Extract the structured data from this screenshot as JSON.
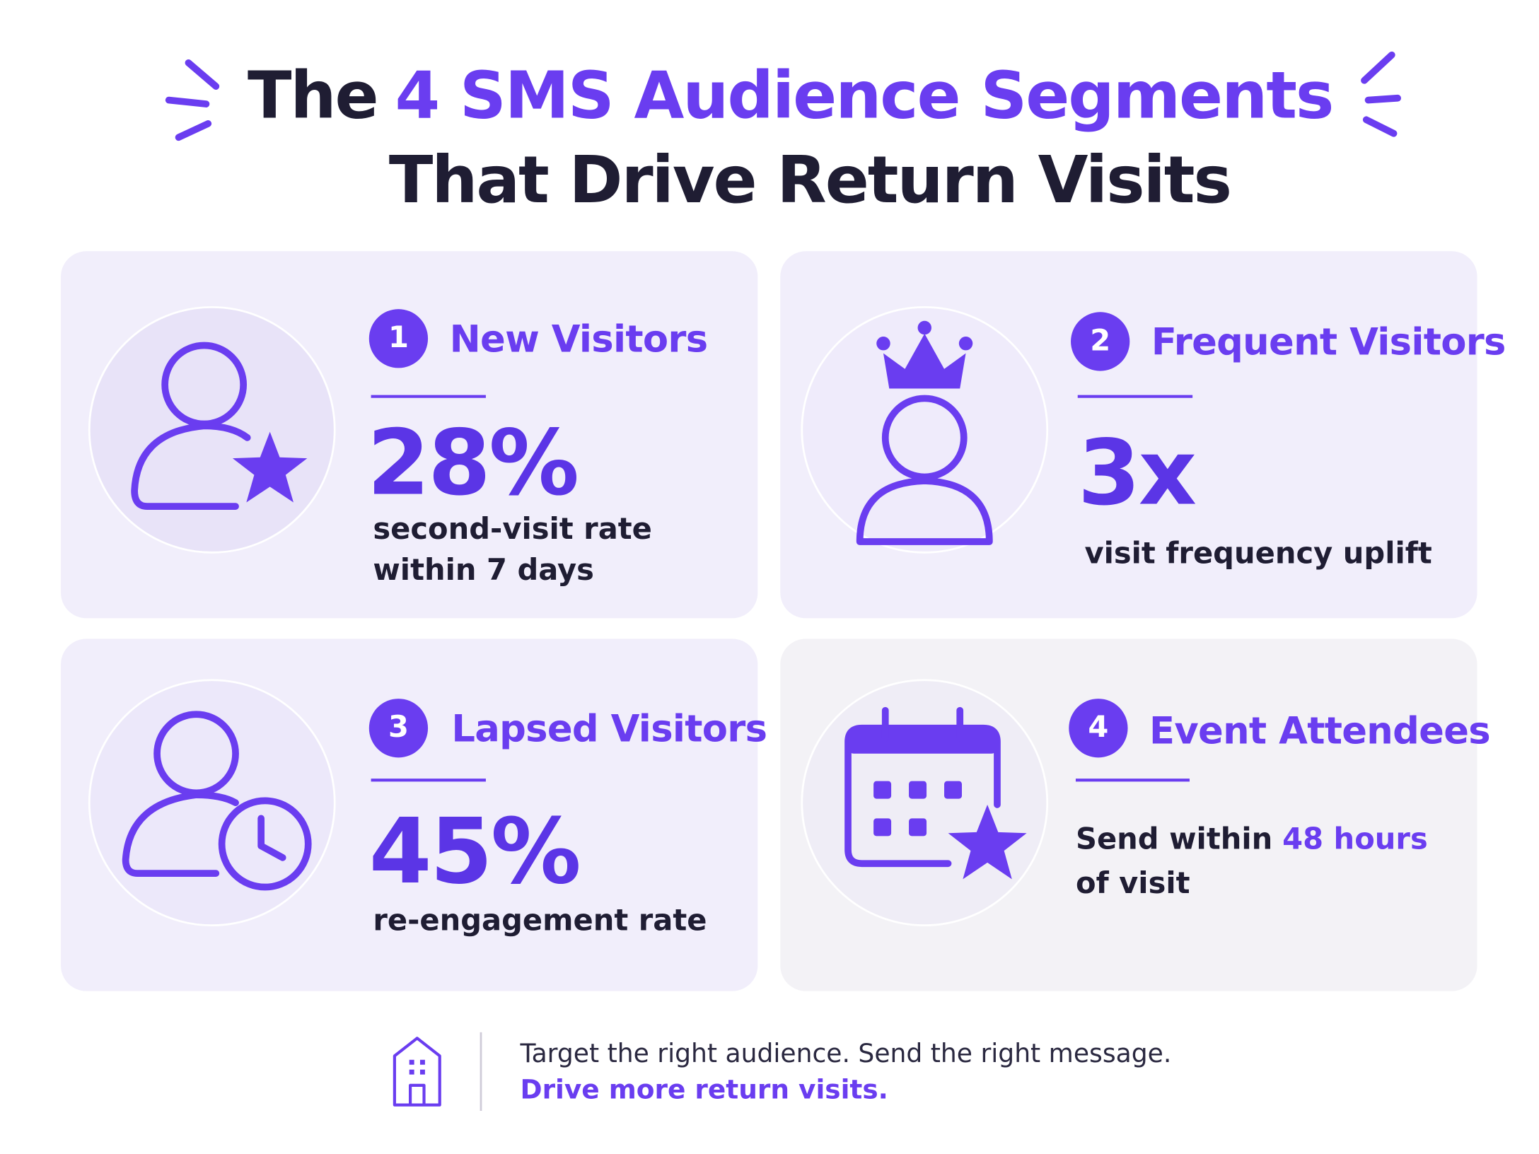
{
  "header": {
    "title_start": "The",
    "title_highlight": "4 SMS Audience Segments",
    "title_line2": "That Drive Return Visits"
  },
  "segments": [
    {
      "number": "1",
      "name": "New Visitors",
      "stat": "28%",
      "caption_lines": [
        "second-visit rate",
        "within 7 days"
      ]
    },
    {
      "number": "2",
      "name": "Frequent Visitors",
      "stat": "3x",
      "caption_lines": [
        "visit frequency uplift"
      ]
    },
    {
      "number": "3",
      "name": "Lapsed Visitors",
      "stat": "45%",
      "caption_lines": [
        "re-engagement rate"
      ]
    },
    {
      "number": "4",
      "name": "Event Attendees",
      "caption": {
        "line1_text": "Send within",
        "line1_highlight": "48 hours",
        "line2": "of visit"
      }
    }
  ],
  "footer": {
    "line1": "Target the right audience. Send the right message.",
    "line2": "Drive more return visits."
  }
}
